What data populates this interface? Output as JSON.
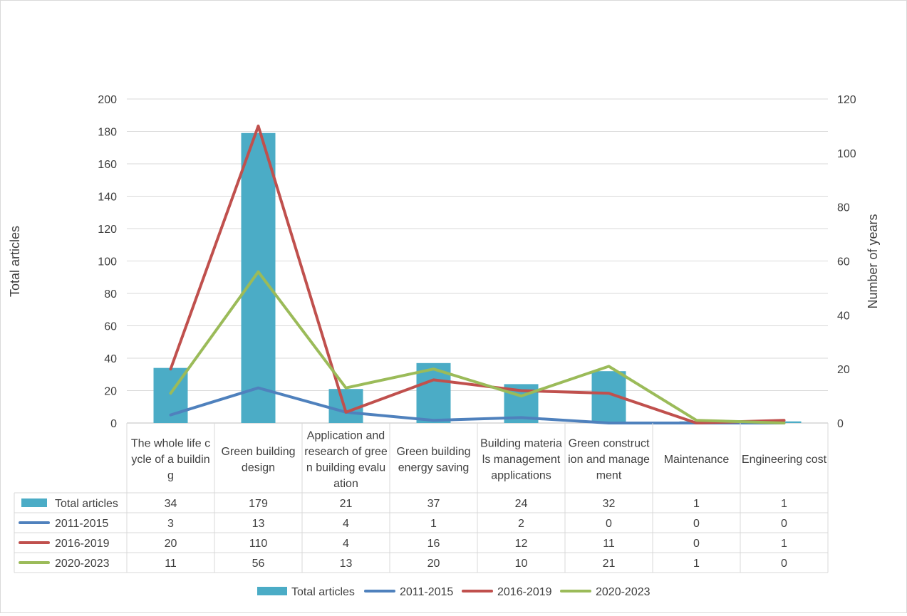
{
  "chart_data": {
    "type": "bar",
    "title": "",
    "categories": [
      [
        "The whole life c",
        "ycle of a buildin",
        "g"
      ],
      [
        "Green building",
        "design"
      ],
      [
        "Application and",
        "research of gree",
        "n building evalu",
        "ation"
      ],
      [
        "Green building",
        "energy saving"
      ],
      [
        "Building materia",
        "ls management",
        "applications"
      ],
      [
        "Green construct",
        "ion and manage",
        "ment"
      ],
      [
        "Maintenance"
      ],
      [
        "Engineering cost"
      ]
    ],
    "left_axis": {
      "label": "Total articles",
      "min": 0,
      "max": 200,
      "step": 20
    },
    "right_axis": {
      "label": "Number of years",
      "min": 0,
      "max": 120,
      "step": 20
    },
    "series": [
      {
        "name": "Total articles",
        "kind": "bar",
        "axis": "left",
        "color": "#4bacc6",
        "values": [
          34,
          179,
          21,
          37,
          24,
          32,
          1,
          1
        ]
      },
      {
        "name": "2011-2015",
        "kind": "line",
        "axis": "right",
        "color": "#4f81bd",
        "values": [
          3,
          13,
          4,
          1,
          2,
          0,
          0,
          0
        ]
      },
      {
        "name": "2016-2019",
        "kind": "line",
        "axis": "right",
        "color": "#c0504d",
        "values": [
          20,
          110,
          4,
          16,
          12,
          11,
          0,
          1
        ]
      },
      {
        "name": "2020-2023",
        "kind": "line",
        "axis": "right",
        "color": "#9bbb59",
        "values": [
          11,
          56,
          13,
          20,
          10,
          21,
          1,
          0
        ]
      }
    ],
    "grid": true,
    "data_table": true,
    "legend_position": "bottom"
  }
}
